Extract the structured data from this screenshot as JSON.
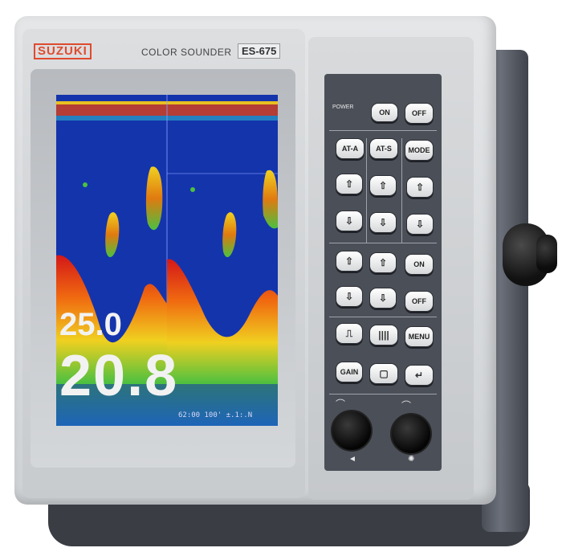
{
  "device": {
    "brand": "SUZUKI",
    "model_label": "COLOR SOUNDER",
    "model_code": "ES-675"
  },
  "screen": {
    "readout_small": "25.0",
    "readout_large": "20.8",
    "status_line": "62:00 100' ±.1:.N"
  },
  "keypad": {
    "power_label": "POWER",
    "power_on": "ON",
    "power_off": "OFF",
    "at_a": "AT-A",
    "at_s": "AT-S",
    "mode": "MODE",
    "on2": "ON",
    "off2": "OFF",
    "menu": "MENU",
    "gain": "GAIN",
    "up_icon": "⇧",
    "down_icon": "⇩",
    "enter_icon": "↵",
    "bars_icon": "||||",
    "step_icon": "⎍",
    "box_icon": "▢",
    "left_arrow": "◄",
    "brightness_icon": "✺"
  }
}
